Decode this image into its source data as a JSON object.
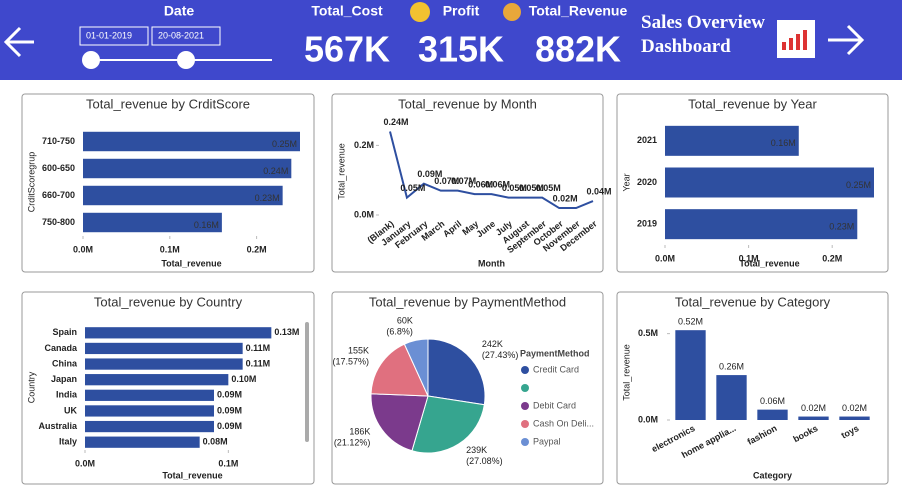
{
  "header": {
    "date_label": "Date",
    "start_date": "01-01-2019",
    "end_date": "20-08-2021",
    "kpis": [
      {
        "label": "Total_Cost",
        "value": "567K"
      },
      {
        "label": "Profit",
        "value": "315K"
      },
      {
        "label": "Total_Revenue",
        "value": "882K"
      }
    ],
    "title": "Sales Overview Dashboard"
  },
  "chart_data": [
    {
      "type": "bar",
      "horizontal": true,
      "title": "Total_revenue by CrditScore",
      "x_label": "Total_revenue",
      "y_label": "CrditScoregrup",
      "categories": [
        "710-750",
        "600-650",
        "660-700",
        "750-800"
      ],
      "values": [
        0.25,
        0.24,
        0.23,
        0.16
      ],
      "value_labels": [
        "0.25M",
        "0.24M",
        "0.23M",
        "0.16M"
      ],
      "color": "#2e4fa0",
      "xlim": [
        0,
        0.25
      ],
      "xticks": [
        {
          "value": 0,
          "label": "0.0M"
        },
        {
          "value": 0.1,
          "label": "0.1M"
        },
        {
          "value": 0.2,
          "label": "0.2M"
        }
      ]
    },
    {
      "type": "line",
      "title": "Total_revenue by Month",
      "x_label": "Month",
      "y_label": "Total_revenue",
      "categories": [
        "(Blank)",
        "January",
        "February",
        "March",
        "April",
        "May",
        "June",
        "July",
        "August",
        "September",
        "October",
        "November",
        "December"
      ],
      "values": [
        0.24,
        0.05,
        0.09,
        0.07,
        0.07,
        0.06,
        0.06,
        0.05,
        0.05,
        0.05,
        0.02,
        0.02,
        0.04
      ],
      "value_labels": [
        "0.24M",
        "0.05M",
        "0.09M",
        "0.07M",
        "0.07M",
        "0.06M",
        "0.06M",
        "0.05M",
        "0.05M",
        "0.05M",
        "0.02M",
        null,
        "0.04M"
      ],
      "color": "#2e4fa0",
      "ylim": [
        0,
        0.25
      ],
      "yticks": [
        {
          "value": 0,
          "label": "0.0M"
        },
        {
          "value": 0.2,
          "label": "0.2M"
        }
      ]
    },
    {
      "type": "bar",
      "horizontal": true,
      "title": "Total_revenue by Year",
      "x_label": "Total_revenue",
      "y_label": "Year",
      "categories": [
        "2021",
        "2020",
        "2019"
      ],
      "values": [
        0.16,
        0.25,
        0.23
      ],
      "value_labels": [
        "0.16M",
        "0.25M",
        "0.23M"
      ],
      "color": "#2e4fa0",
      "xlim": [
        0,
        0.25
      ],
      "xticks": [
        {
          "value": 0,
          "label": "0.0M"
        },
        {
          "value": 0.1,
          "label": "0.1M"
        },
        {
          "value": 0.2,
          "label": "0.2M"
        }
      ]
    },
    {
      "type": "bar",
      "horizontal": true,
      "title": "Total_revenue by Country",
      "x_label": "Total_revenue",
      "y_label": "Country",
      "categories": [
        "Spain",
        "Canada",
        "China",
        "Japan",
        "India",
        "UK",
        "Australia",
        "Italy"
      ],
      "values": [
        0.13,
        0.11,
        0.11,
        0.1,
        0.09,
        0.09,
        0.09,
        0.08
      ],
      "value_labels": [
        "0.13M",
        "0.11M",
        "0.11M",
        "0.10M",
        "0.09M",
        "0.09M",
        "0.09M",
        "0.08M"
      ],
      "color": "#2e4fa0",
      "xlim": [
        0,
        0.15
      ],
      "xticks": [
        {
          "value": 0,
          "label": "0.0M"
        },
        {
          "value": 0.1,
          "label": "0.1M"
        }
      ]
    },
    {
      "type": "pie",
      "title": "Total_revenue by PaymentMethod",
      "legend_title": "PaymentMethod",
      "series": [
        {
          "name": "Credit Card",
          "color": "#2e4fa0",
          "value": 242,
          "value_label": "242K (27.43%)"
        },
        {
          "name": null,
          "color": "#36a58f",
          "value": 239,
          "value_label": "239K (27.08%)"
        },
        {
          "name": "Debit Card",
          "color": "#7b3a8c",
          "value": 186,
          "value_label": "186K (21.12%)"
        },
        {
          "name": "Cash On Deli...",
          "color": "#e0707f",
          "value": 155,
          "value_label": "155K (17.57%)"
        },
        {
          "name": "Paypal",
          "color": "#6b8fd4",
          "value": 60,
          "value_label": "60K (6.8%)"
        }
      ]
    },
    {
      "type": "bar",
      "title": "Total_revenue by Category",
      "x_label": "Category",
      "y_label": "Total_revenue",
      "categories": [
        "electronics",
        "home applia...",
        "fashion",
        "books",
        "toys"
      ],
      "values": [
        0.52,
        0.26,
        0.06,
        0.02,
        0.02
      ],
      "value_labels": [
        "0.52M",
        "0.26M",
        "0.06M",
        "0.02M",
        "0.02M"
      ],
      "color": "#2e4fa0",
      "ylim": [
        0,
        0.55
      ],
      "yticks": [
        {
          "value": 0,
          "label": "0.0M"
        },
        {
          "value": 0.5,
          "label": "0.5M"
        }
      ]
    }
  ]
}
